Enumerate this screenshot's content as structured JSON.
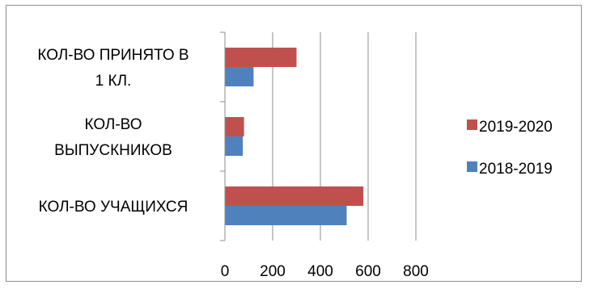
{
  "chart_data": {
    "type": "bar",
    "orientation": "horizontal",
    "categories": [
      [
        "КОЛ-ВО УЧАЩИХСЯ"
      ],
      [
        "КОЛ-ВО",
        "ВЫПУСКНИКОВ"
      ],
      [
        "КОЛ-ВО ПРИНЯТО В",
        "1 КЛ."
      ]
    ],
    "series": [
      {
        "name": "2018-2019",
        "values": [
          510,
          75,
          120
        ],
        "color": "#4f81bd"
      },
      {
        "name": "2019-2020",
        "values": [
          580,
          80,
          300
        ],
        "color": "#c0504d"
      }
    ],
    "x_ticks": [
      "0",
      "200",
      "400",
      "600",
      "800"
    ],
    "xlim": [
      0,
      800
    ],
    "legend_order": [
      "2019-2020",
      "2018-2019"
    ],
    "legend_position": "right",
    "grid": "vertical"
  }
}
